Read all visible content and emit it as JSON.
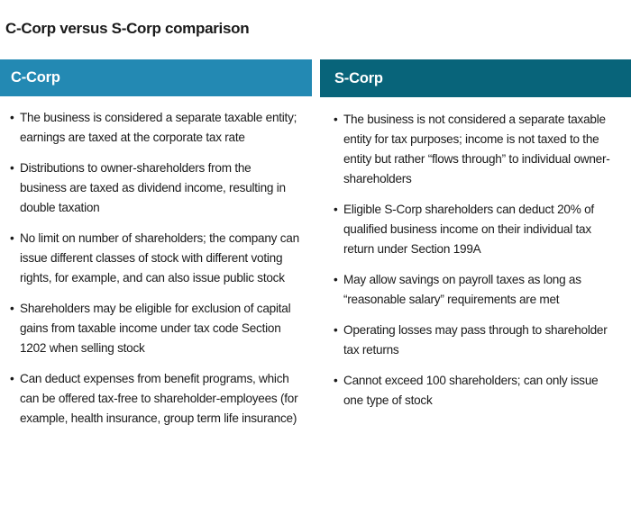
{
  "title": "C-Corp versus S-Corp comparison",
  "columns": [
    {
      "heading": "C-Corp",
      "items": [
        "The business is considered a separate taxable entity; earnings are taxed at the corporate tax rate",
        "Distributions to owner-shareholders from the business are taxed as dividend income, resulting in double taxation",
        "No limit on number of shareholders; the company can issue different classes of stock with different voting rights, for example, and can also issue public stock",
        "Shareholders may be eligible for exclusion of capital gains from taxable income under tax code Section 1202 when selling stock",
        "Can deduct expenses from benefit programs, which can be offered tax-free to shareholder-employees (for example, health insurance, group term life insurance)"
      ]
    },
    {
      "heading": "S-Corp",
      "items": [
        "The business is not considered a separate taxable entity for tax purposes; income is not taxed to the entity but rather “flows through” to individual owner-shareholders",
        "Eligible S-Corp shareholders can deduct 20% of qualified business income on their individual tax return under Section 199A",
        "May allow savings on payroll taxes as long as “reasonable salary” requirements are met",
        "Operating losses may pass through to shareholder tax returns",
        "Cannot exceed 100 shareholders; can only issue one type of stock"
      ]
    }
  ],
  "bullet": "•"
}
